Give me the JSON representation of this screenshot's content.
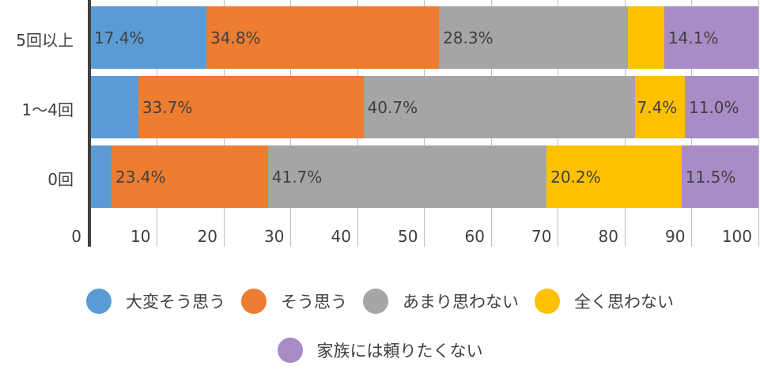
{
  "chart_data": {
    "type": "bar",
    "orientation": "horizontal",
    "stacked": "percent",
    "title": "",
    "xlabel": "",
    "ylabel": "",
    "xlim": [
      0,
      100
    ],
    "x_ticks": [
      "0",
      "10",
      "20",
      "30",
      "40",
      "50",
      "60",
      "70",
      "80",
      "90",
      "100"
    ],
    "grid": true,
    "legend_position": "bottom",
    "categories": [
      "5回以上",
      "1〜4回",
      "0回"
    ],
    "series": [
      {
        "name": "大変そう思う",
        "color": "#5b9bd5",
        "values": [
          17.4,
          7.2,
          3.2
        ],
        "labels": [
          "17.4%",
          "",
          ""
        ]
      },
      {
        "name": "そう思う",
        "color": "#ed7d31",
        "values": [
          34.8,
          33.7,
          23.4
        ],
        "labels": [
          "34.8%",
          "33.7%",
          "23.4%"
        ]
      },
      {
        "name": "あまり思わない",
        "color": "#a5a5a5",
        "values": [
          28.3,
          40.7,
          41.7
        ],
        "labels": [
          "28.3%",
          "40.7%",
          "41.7%"
        ]
      },
      {
        "name": "全く思わない",
        "color": "#ffc000",
        "values": [
          5.4,
          7.4,
          20.2
        ],
        "labels": [
          "",
          "7.4%",
          "20.2%"
        ]
      },
      {
        "name": "家族には頼りたくない",
        "color": "#a98cc6",
        "values": [
          14.1,
          11.0,
          11.5
        ],
        "labels": [
          "14.1%",
          "11.0%",
          "11.5%"
        ]
      }
    ]
  }
}
